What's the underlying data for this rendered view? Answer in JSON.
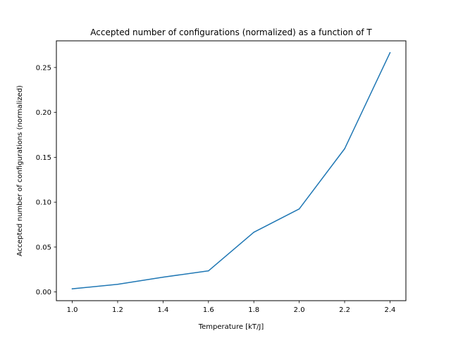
{
  "chart_data": {
    "type": "line",
    "title": "Accepted number of configurations (normalized) as a function of T",
    "xlabel": "Temperature [kT/J]",
    "ylabel": "Accepted number of configurations (normalized)",
    "x": [
      1.0,
      1.2,
      1.4,
      1.6,
      1.8,
      2.0,
      2.2,
      2.4
    ],
    "series": [
      {
        "values": [
          0.0035,
          0.0085,
          0.0165,
          0.0235,
          0.0665,
          0.0925,
          0.1595,
          0.2665
        ]
      }
    ],
    "xlim": [
      0.93,
      2.47
    ],
    "ylim": [
      -0.0097,
      0.2797
    ],
    "xticks": [
      "1.0",
      "1.2",
      "1.4",
      "1.6",
      "1.8",
      "2.0",
      "2.2",
      "2.4"
    ],
    "yticks": [
      "0.00",
      "0.05",
      "0.10",
      "0.15",
      "0.20",
      "0.25"
    ],
    "grid": false,
    "colors": {
      "line": "#1f77b4"
    }
  }
}
